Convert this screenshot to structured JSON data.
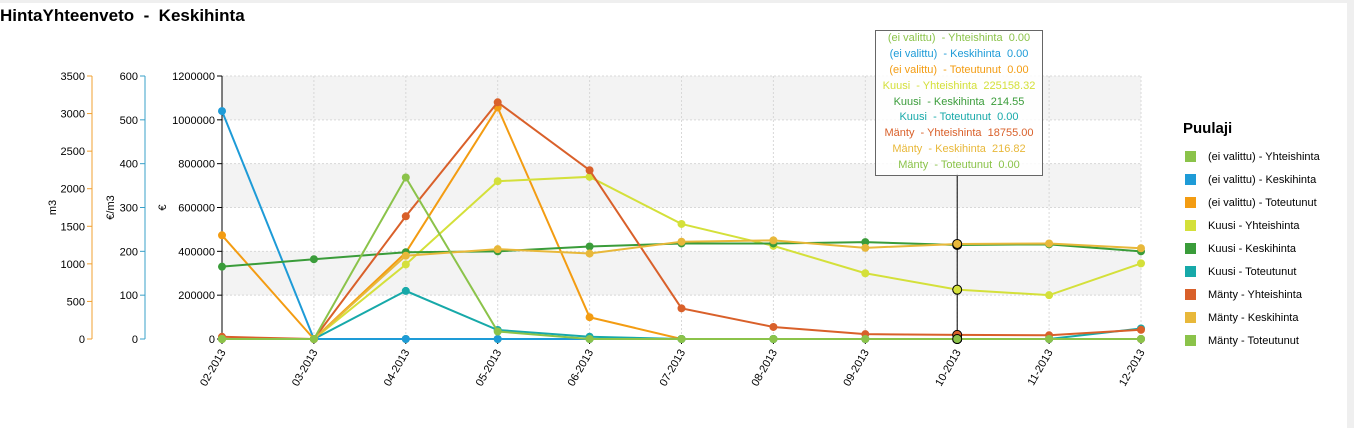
{
  "title": "HintaYhteenveto  -  Keskihinta",
  "chart_data": {
    "type": "line",
    "categories": [
      "02-2013",
      "03-2013",
      "04-2013",
      "05-2013",
      "06-2013",
      "07-2013",
      "08-2013",
      "09-2013",
      "10-2013",
      "11-2013",
      "12-2013"
    ],
    "axes": {
      "left_m3": {
        "label": "m3",
        "ylim": [
          0,
          3500
        ],
        "ticks": [
          "0",
          "500",
          "1000",
          "1500",
          "2000",
          "2500",
          "3000",
          "3500"
        ],
        "color": "#f0a030"
      },
      "left_eur_m3": {
        "label": "€/m3",
        "ylim": [
          0,
          600
        ],
        "ticks": [
          "0",
          "100",
          "200",
          "300",
          "400",
          "500",
          "600"
        ],
        "color": "#3aa0c8"
      },
      "main_eur": {
        "label": "€",
        "ylim": [
          0,
          1200000
        ],
        "ticks": [
          "0",
          "200000",
          "400000",
          "600000",
          "800000",
          "1000000",
          "1200000"
        ]
      }
    },
    "grid": true,
    "legend_position": "right",
    "series": [
      {
        "name": "(ei valittu)  - Yhteishinta",
        "axis": "main_eur",
        "color": "#8bc34a",
        "values": [
          0,
          0,
          0,
          0,
          0,
          0,
          0,
          0,
          0,
          0,
          0
        ]
      },
      {
        "name": "(ei valittu)  - Keskihinta",
        "axis": "left_eur_m3",
        "color": "#1e9bd7",
        "values": [
          520,
          0,
          0,
          0,
          0,
          0,
          0,
          0,
          0,
          0,
          0
        ]
      },
      {
        "name": "(ei valittu)  - Toteutunut",
        "axis": "left_m3",
        "color": "#f39c12",
        "values": [
          1380,
          0,
          1150,
          3080,
          290,
          0,
          0,
          0,
          0,
          0,
          0
        ]
      },
      {
        "name": "Kuusi  - Yhteishinta",
        "axis": "main_eur",
        "color": "#d4e03a",
        "values": [
          0,
          0,
          340000,
          720000,
          740000,
          525000,
          425000,
          300000,
          225158.32,
          200000,
          345000
        ]
      },
      {
        "name": "Kuusi  - Keskihinta",
        "axis": "left_eur_m3",
        "color": "#3a9c3a",
        "values": [
          165,
          182,
          198,
          200,
          211,
          218,
          218,
          221,
          214.55,
          216,
          200
        ]
      },
      {
        "name": "Kuusi  - Toteutunut",
        "axis": "left_m3",
        "color": "#17a9a9",
        "values": [
          0,
          0,
          640,
          120,
          30,
          0,
          0,
          0,
          0,
          0,
          140
        ]
      },
      {
        "name": "Mänty  - Yhteishinta",
        "axis": "main_eur",
        "color": "#d9602a",
        "values": [
          10000,
          0,
          560000,
          1080000,
          770000,
          140000,
          55000,
          22000,
          18755.0,
          17000,
          42000
        ]
      },
      {
        "name": "Mänty  - Keskihinta",
        "axis": "left_eur_m3",
        "color": "#e8b83a",
        "values": [
          0,
          0,
          190,
          205,
          195,
          222,
          225,
          208,
          216.82,
          218,
          207
        ]
      },
      {
        "name": "Mänty  - Toteutunut",
        "axis": "left_m3",
        "color": "#8bc34a",
        "values": [
          0,
          0,
          2150,
          100,
          0,
          0,
          0,
          0,
          0,
          0,
          0
        ]
      }
    ],
    "highlight_category": "10-2013"
  },
  "tooltip": {
    "lines": [
      {
        "text": "(ei valittu)  - Yhteishinta  0.00",
        "color": "#8bc34a"
      },
      {
        "text": "(ei valittu)  - Keskihinta  0.00",
        "color": "#1e9bd7"
      },
      {
        "text": "(ei valittu)  - Toteutunut  0.00",
        "color": "#f39c12"
      },
      {
        "text": "Kuusi  - Yhteishinta  225158.32",
        "color": "#d4e03a"
      },
      {
        "text": "Kuusi  - Keskihinta  214.55",
        "color": "#3a9c3a"
      },
      {
        "text": "Kuusi  - Toteutunut  0.00",
        "color": "#17a9a9"
      },
      {
        "text": "Mänty  - Yhteishinta  18755.00",
        "color": "#d9602a"
      },
      {
        "text": "Mänty  - Keskihinta  216.82",
        "color": "#e8b83a"
      },
      {
        "text": "Mänty  - Toteutunut  0.00",
        "color": "#8bc34a"
      }
    ]
  },
  "legend": {
    "title": "Puulaji"
  }
}
